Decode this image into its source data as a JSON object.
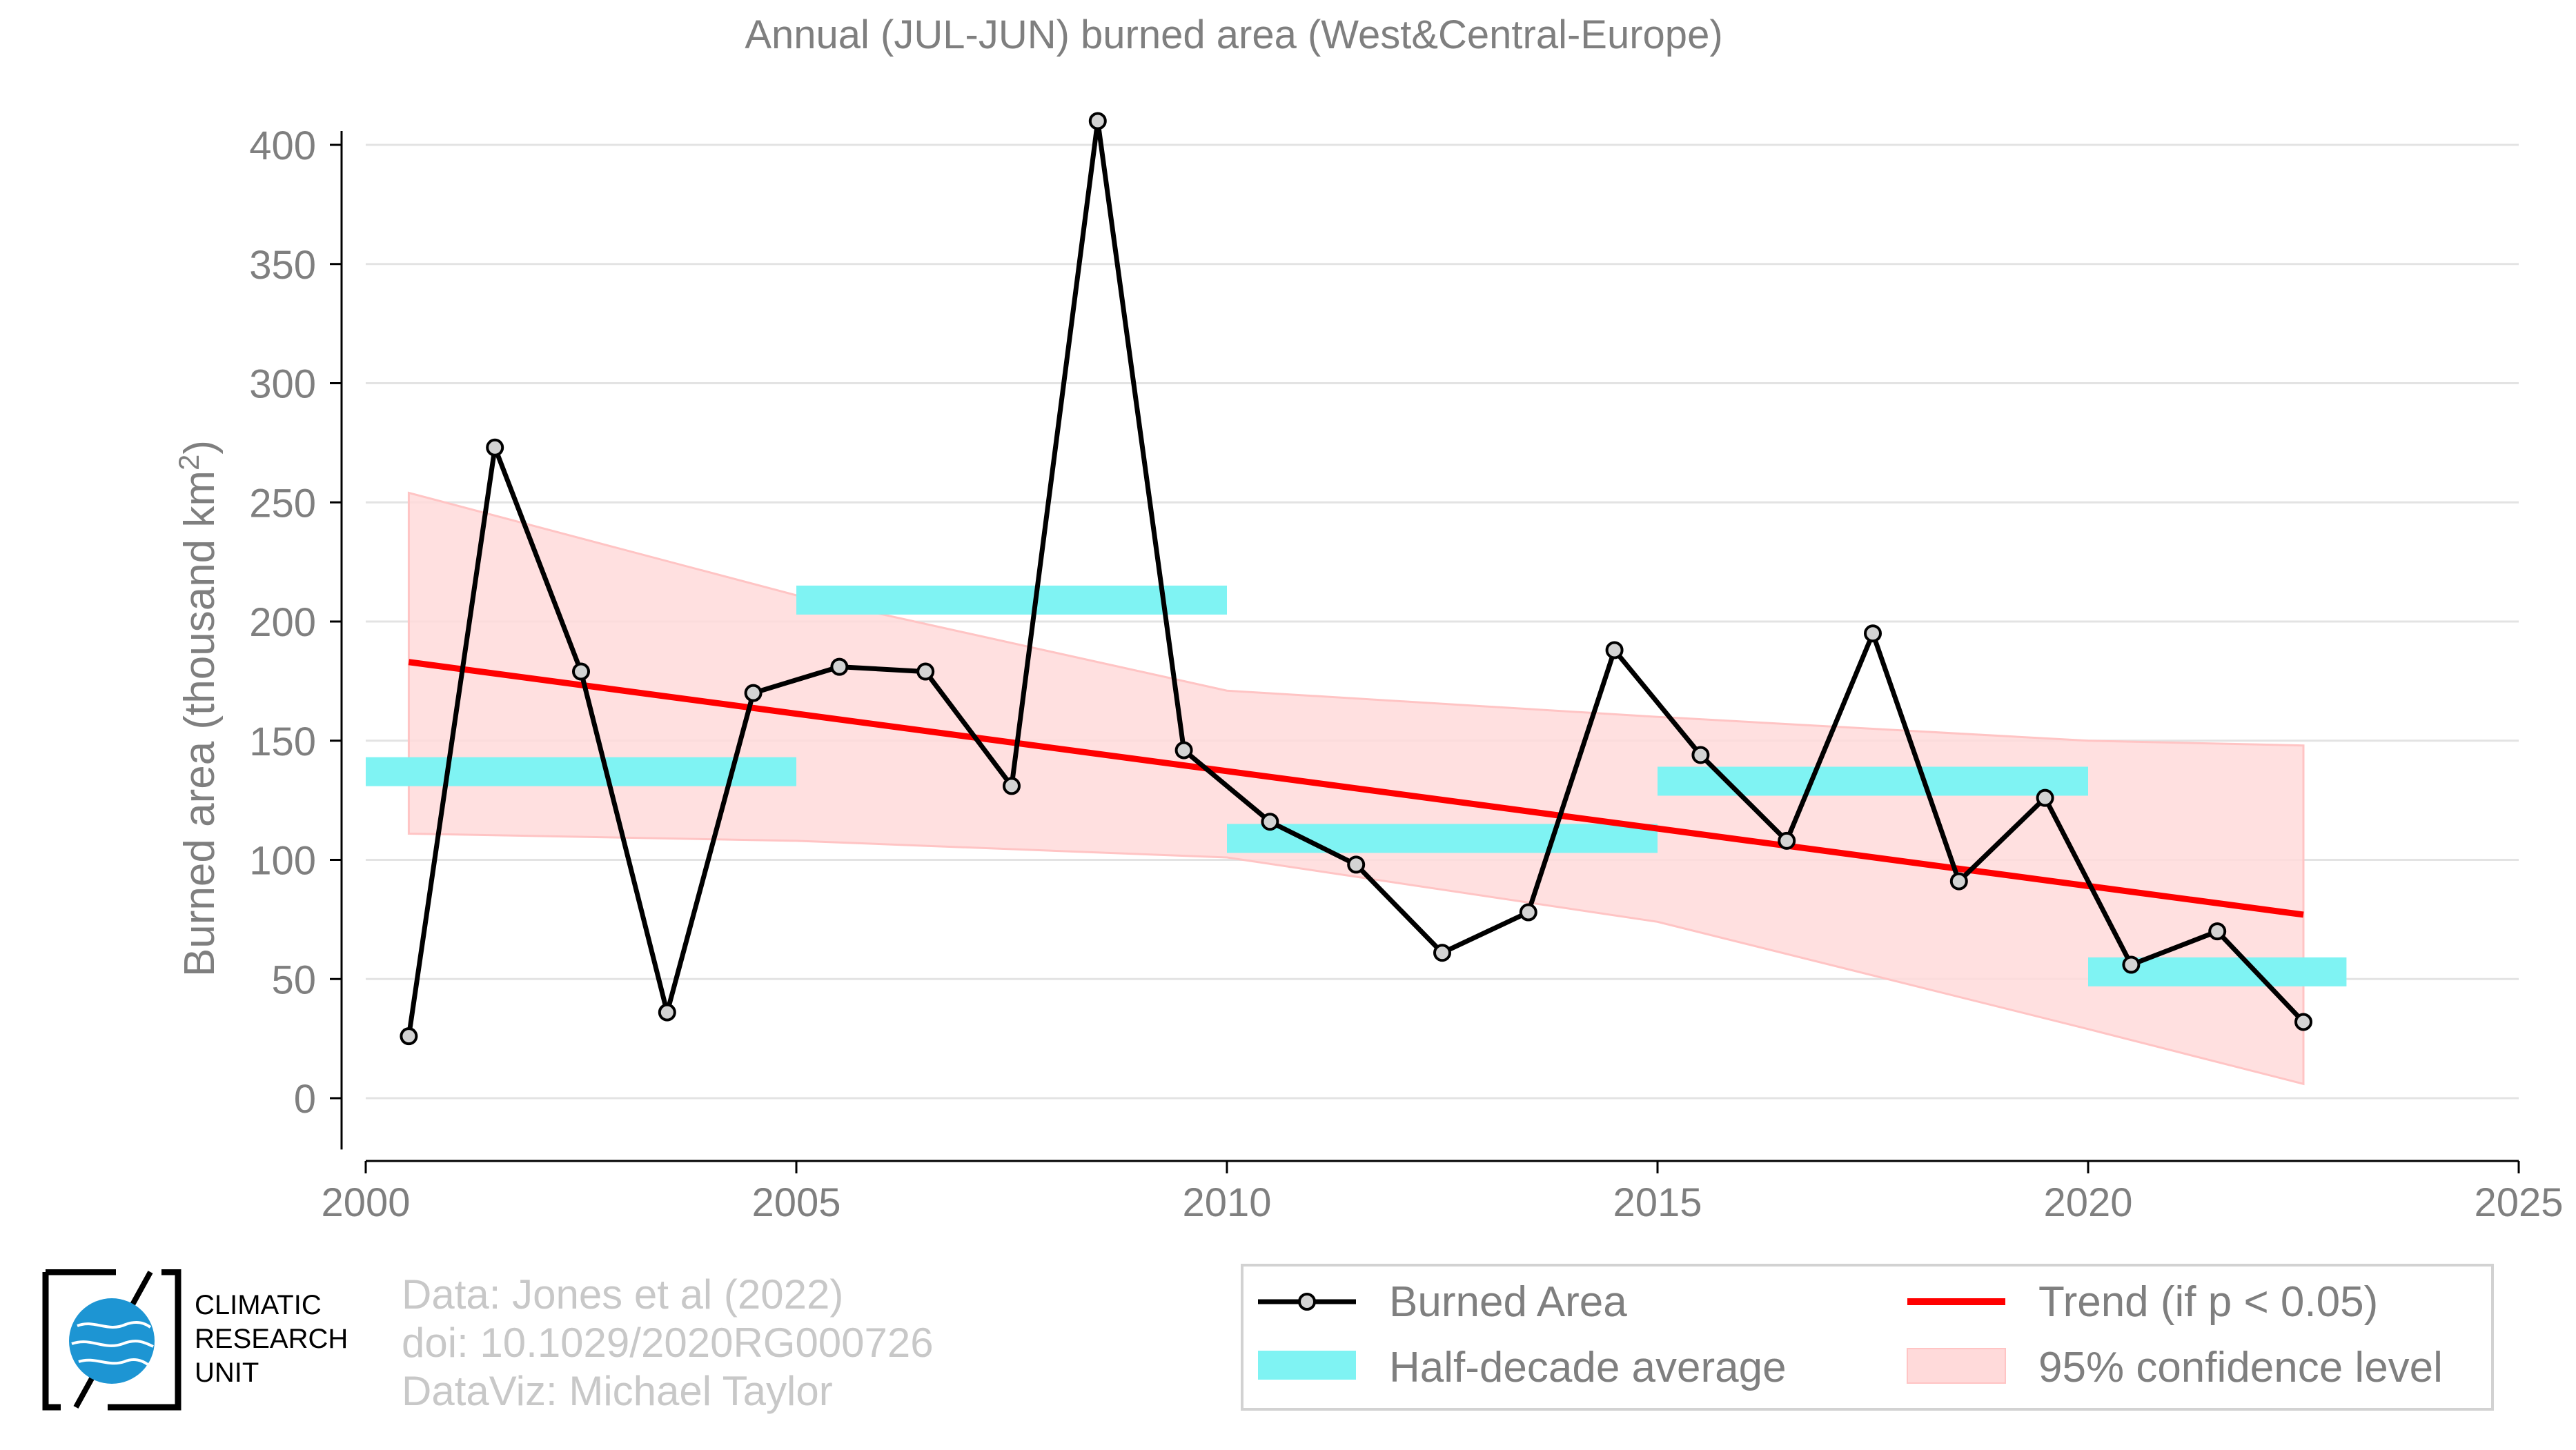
{
  "chart_data": {
    "type": "line",
    "title": "Annual (JUL-JUN) burned area (West&Central-Europe)",
    "ylabel_prefix": "Burned area (thousand km",
    "ylabel_sup": "2",
    "ylabel_suffix": ")",
    "xlabel": "",
    "xlim": [
      2000,
      2025
    ],
    "ylim": [
      -25,
      420
    ],
    "xticks": [
      2000,
      2005,
      2010,
      2015,
      2020,
      2025
    ],
    "yticks": [
      0,
      50,
      100,
      150,
      200,
      250,
      300,
      350,
      400
    ],
    "grid": true,
    "legend_position": "bottom-right",
    "colors": {
      "burned_line": "#000000",
      "marker_fill": "#d3d3d3",
      "trend": "#ff0000",
      "half_decade": "#7ff3f3",
      "confidence": "#ffdada"
    },
    "series": [
      {
        "name": "Burned Area",
        "x": [
          2000.5,
          2001.5,
          2002.5,
          2003.5,
          2004.5,
          2005.5,
          2006.5,
          2007.5,
          2008.5,
          2009.5,
          2010.5,
          2011.5,
          2012.5,
          2013.5,
          2014.5,
          2015.5,
          2016.5,
          2017.5,
          2018.5,
          2019.5,
          2020.5,
          2021.5,
          2022.5
        ],
        "values": [
          26,
          273,
          179,
          36,
          170,
          181,
          179,
          131,
          410,
          146,
          116,
          98,
          61,
          78,
          188,
          144,
          108,
          195,
          91,
          126,
          56,
          70,
          32
        ]
      },
      {
        "name": "Trend (if p < 0.05)",
        "x": [
          2000.5,
          2022.5
        ],
        "values": [
          183,
          77
        ]
      },
      {
        "name": "Half-decade average",
        "segments": [
          {
            "x0": 2000,
            "x1": 2005,
            "value": 137
          },
          {
            "x0": 2005,
            "x1": 2010,
            "value": 209
          },
          {
            "x0": 2010,
            "x1": 2015,
            "value": 109
          },
          {
            "x0": 2015,
            "x1": 2020,
            "value": 133
          },
          {
            "x0": 2020,
            "x1": 2023,
            "value": 53
          }
        ]
      },
      {
        "name": "95% confidence level",
        "x": [
          2000.5,
          2005,
          2010,
          2015,
          2020,
          2022.5
        ],
        "upper": [
          254,
          211,
          171,
          160,
          150,
          148
        ],
        "lower": [
          111,
          108,
          101,
          74,
          29,
          6
        ]
      }
    ]
  },
  "footer": {
    "lines": [
      "Data: Jones et al (2022)",
      "doi: 10.1029/2020RG000726",
      "DataViz: Michael Taylor"
    ]
  },
  "logo": {
    "lines": [
      "CLIMATIC",
      "RESEARCH",
      "UNIT"
    ]
  }
}
